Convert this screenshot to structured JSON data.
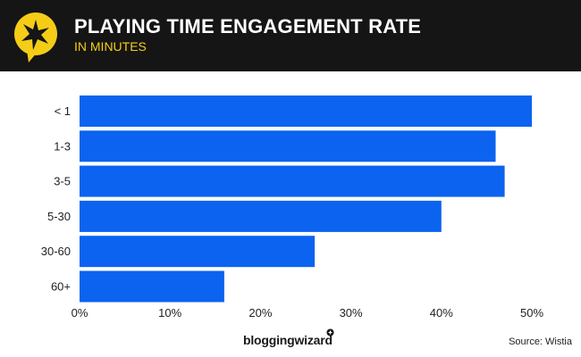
{
  "header": {
    "title": "PLAYING TIME ENGAGEMENT RATE",
    "subtitle": "IN MINUTES",
    "icon": "star-speech-bubble-icon"
  },
  "colors": {
    "header_bg": "#151515",
    "accent_yellow": "#f5cd17",
    "bar": "#0b63f0",
    "axis_text": "#222222"
  },
  "chart_data": {
    "type": "bar",
    "orientation": "horizontal",
    "categories": [
      "< 1",
      "1-3",
      "3-5",
      "5-30",
      "30-60",
      "60+"
    ],
    "values": [
      50,
      46,
      47,
      40,
      26,
      16
    ],
    "unit": "%",
    "xlim": [
      0,
      50
    ],
    "x_ticks": [
      "0%",
      "10%",
      "20%",
      "30%",
      "40%",
      "50%"
    ],
    "grid": false,
    "legend": "none"
  },
  "footer": {
    "brand": "bloggingwizard",
    "source": "Source: Wistia"
  }
}
